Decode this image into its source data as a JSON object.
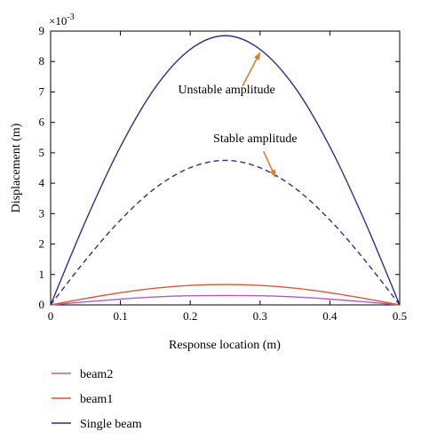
{
  "chart_data": {
    "type": "line",
    "title": "",
    "xlabel": "Response location (m)",
    "ylabel": "Displacement (m)",
    "y_exponent_label": "×10",
    "y_exponent_power": "-3",
    "xlim": [
      0,
      0.5
    ],
    "ylim": [
      0,
      9
    ],
    "y_scale_factor": 0.001,
    "xticks": [
      0,
      0.1,
      0.2,
      0.3,
      0.4,
      0.5
    ],
    "xtick_labels": [
      "0",
      "0.1",
      "0.2",
      "0.3",
      "0.4",
      "0.5"
    ],
    "yticks": [
      0,
      1,
      2,
      3,
      4,
      5,
      6,
      7,
      8,
      9
    ],
    "ytick_labels": [
      "0",
      "1",
      "2",
      "3",
      "4",
      "5",
      "6",
      "7",
      "8",
      "9"
    ],
    "grid": false,
    "legend_position": "below",
    "x": [
      0,
      0.05,
      0.1,
      0.15,
      0.2,
      0.25,
      0.3,
      0.35,
      0.4,
      0.45,
      0.5
    ],
    "series": [
      {
        "name": "beam2",
        "color": "#b05cc0",
        "style": "solid",
        "in_legend": true,
        "values": [
          0,
          0.1,
          0.19,
          0.26,
          0.3,
          0.31,
          0.3,
          0.26,
          0.19,
          0.1,
          0
        ]
      },
      {
        "name": "beam1",
        "color": "#d9573a",
        "style": "solid",
        "in_legend": true,
        "values": [
          0,
          0.21,
          0.4,
          0.55,
          0.64,
          0.67,
          0.64,
          0.55,
          0.4,
          0.21,
          0
        ]
      },
      {
        "name": "Single beam",
        "color": "#2e2f8c",
        "style": "solid",
        "in_legend": true,
        "values": [
          0,
          2.75,
          5.2,
          7.15,
          8.4,
          8.85,
          8.4,
          7.15,
          5.2,
          2.75,
          0
        ]
      },
      {
        "name": "",
        "color": "#2e2f8c",
        "style": "dashed",
        "in_legend": false,
        "values": [
          0,
          1.47,
          2.79,
          3.84,
          4.51,
          4.75,
          4.51,
          3.84,
          2.79,
          1.47,
          0
        ]
      }
    ],
    "annotations": [
      {
        "text": "Unstable amplitude",
        "text_x": 0.252,
        "text_y": 6.95,
        "arrow_from": [
          0.275,
          7.2
        ],
        "arrow_to": [
          0.3,
          8.3
        ]
      },
      {
        "text": "Stable amplitude",
        "text_x": 0.293,
        "text_y": 5.35,
        "arrow_from": [
          0.305,
          5.05
        ],
        "arrow_to": [
          0.322,
          4.2
        ]
      }
    ],
    "arrow_color": "#e07a2a"
  }
}
